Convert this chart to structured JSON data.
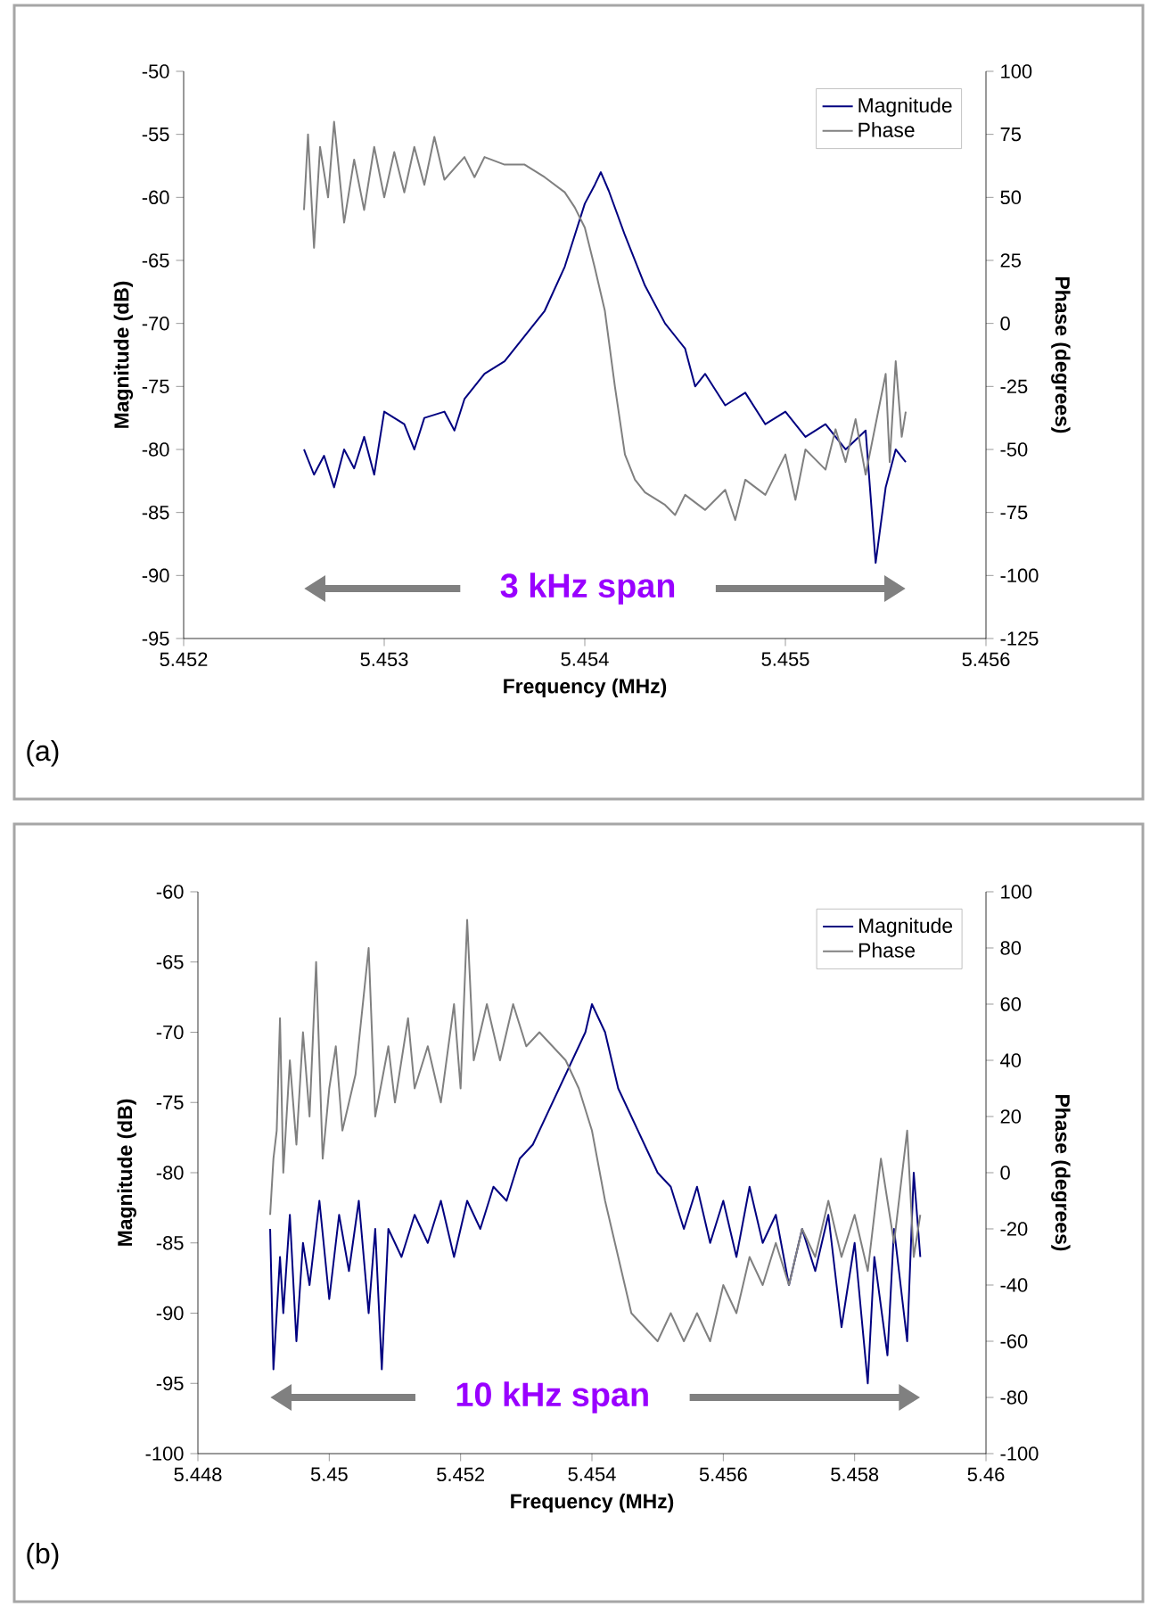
{
  "chart_data": [
    {
      "type": "line",
      "xlabel": "Frequency (MHz)",
      "ylabel": "Magnitude (dB)",
      "y2label": "Phase (degrees)",
      "xlim": [
        5.452,
        5.456
      ],
      "xticks": [
        5.452,
        5.453,
        5.454,
        5.455,
        5.456
      ],
      "ylim": [
        -95,
        -50
      ],
      "yticks": [
        -95,
        -90,
        -85,
        -80,
        -75,
        -70,
        -65,
        -60,
        -55,
        -50
      ],
      "y2lim": [
        -125,
        100
      ],
      "y2ticks": [
        -125,
        -100,
        -75,
        -50,
        -25,
        0,
        25,
        50,
        75,
        100
      ],
      "legend": "top right",
      "annotations": [
        "3 kHz span",
        "(a)"
      ],
      "series": [
        {
          "name": "Magnitude",
          "color": "#000080",
          "x": [
            5.4526,
            5.45265,
            5.4527,
            5.45275,
            5.4528,
            5.45285,
            5.4529,
            5.45295,
            5.453,
            5.4531,
            5.45315,
            5.4532,
            5.4533,
            5.45335,
            5.4534,
            5.4535,
            5.4536,
            5.4537,
            5.4538,
            5.4539,
            5.45395,
            5.454,
            5.45405,
            5.45408,
            5.45412,
            5.4542,
            5.4543,
            5.4544,
            5.4545,
            5.45455,
            5.4546,
            5.4547,
            5.4548,
            5.4549,
            5.455,
            5.4551,
            5.4552,
            5.4553,
            5.4554,
            5.45545,
            5.4555,
            5.45555,
            5.4556
          ],
          "values": [
            -80,
            -82,
            -80.5,
            -83,
            -80,
            -81.5,
            -79,
            -82,
            -77,
            -78,
            -80,
            -77.5,
            -77,
            -78.5,
            -76,
            -74,
            -73,
            -71,
            -69,
            -65.5,
            -63,
            -60.5,
            -59,
            -58,
            -59.5,
            -63,
            -67,
            -70,
            -72,
            -75,
            -74,
            -76.5,
            -75.5,
            -78,
            -77,
            -79,
            -78,
            -80,
            -78.5,
            -89,
            -83,
            -80,
            -81
          ]
        },
        {
          "name": "Phase",
          "color": "#808080",
          "axis": "y2",
          "x": [
            5.4526,
            5.45262,
            5.45265,
            5.45268,
            5.45272,
            5.45275,
            5.4528,
            5.45285,
            5.4529,
            5.45295,
            5.453,
            5.45305,
            5.4531,
            5.45315,
            5.4532,
            5.45325,
            5.4533,
            5.4534,
            5.45345,
            5.4535,
            5.4536,
            5.4537,
            5.4538,
            5.4539,
            5.45395,
            5.454,
            5.45405,
            5.4541,
            5.45415,
            5.4542,
            5.45425,
            5.4543,
            5.4544,
            5.45445,
            5.4545,
            5.4546,
            5.4547,
            5.45475,
            5.4548,
            5.4549,
            5.455,
            5.45505,
            5.4551,
            5.4552,
            5.45525,
            5.4553,
            5.45535,
            5.4554,
            5.45545,
            5.4555,
            5.45552,
            5.45555,
            5.45558,
            5.4556
          ],
          "values": [
            45,
            75,
            30,
            70,
            50,
            80,
            40,
            65,
            45,
            70,
            50,
            68,
            52,
            70,
            55,
            74,
            57,
            66,
            58,
            66,
            63,
            63,
            58,
            52,
            46,
            38,
            22,
            5,
            -25,
            -52,
            -62,
            -67,
            -72,
            -76,
            -68,
            -74,
            -66,
            -78,
            -62,
            -68,
            -52,
            -70,
            -50,
            -58,
            -42,
            -55,
            -38,
            -60,
            -40,
            -20,
            -55,
            -15,
            -45,
            -35
          ]
        }
      ]
    },
    {
      "type": "line",
      "xlabel": "Frequency (MHz)",
      "ylabel": "Magnitude (dB)",
      "y2label": "Phase (degrees)",
      "xlim": [
        5.448,
        5.46
      ],
      "xticks": [
        5.448,
        5.45,
        5.452,
        5.454,
        5.456,
        5.458,
        5.46
      ],
      "ylim": [
        -100,
        -60
      ],
      "yticks": [
        -100,
        -95,
        -90,
        -85,
        -80,
        -75,
        -70,
        -65,
        -60
      ],
      "y2lim": [
        -100,
        100
      ],
      "y2ticks": [
        -100,
        -80,
        -60,
        -40,
        -20,
        0,
        20,
        40,
        60,
        80,
        100
      ],
      "legend": "top right",
      "annotations": [
        "10 kHz span",
        "(b)"
      ],
      "series": [
        {
          "name": "Magnitude",
          "color": "#000080",
          "x": [
            5.4491,
            5.44915,
            5.44925,
            5.4493,
            5.4494,
            5.4495,
            5.4496,
            5.4497,
            5.44985,
            5.45,
            5.45015,
            5.4503,
            5.45045,
            5.4506,
            5.4507,
            5.4508,
            5.4509,
            5.4511,
            5.4513,
            5.4515,
            5.4517,
            5.4519,
            5.4521,
            5.4523,
            5.4525,
            5.4527,
            5.4529,
            5.4531,
            5.4533,
            5.4535,
            5.4537,
            5.4539,
            5.454,
            5.4541,
            5.4542,
            5.4544,
            5.4546,
            5.4548,
            5.455,
            5.4552,
            5.4554,
            5.4556,
            5.4558,
            5.456,
            5.4562,
            5.4564,
            5.4566,
            5.4568,
            5.457,
            5.4572,
            5.4574,
            5.4576,
            5.4578,
            5.458,
            5.4582,
            5.4583,
            5.4585,
            5.4586,
            5.4588,
            5.4589,
            5.459
          ],
          "values": [
            -84,
            -94,
            -86,
            -90,
            -83,
            -92,
            -85,
            -88,
            -82,
            -89,
            -83,
            -87,
            -82,
            -90,
            -84,
            -94,
            -84,
            -86,
            -83,
            -85,
            -82,
            -86,
            -82,
            -84,
            -81,
            -82,
            -79,
            -78,
            -76,
            -74,
            -72,
            -70,
            -68,
            -69,
            -70,
            -74,
            -76,
            -78,
            -80,
            -81,
            -84,
            -81,
            -85,
            -82,
            -86,
            -81,
            -85,
            -83,
            -88,
            -84,
            -87,
            -83,
            -91,
            -85,
            -95,
            -86,
            -93,
            -84,
            -92,
            -80,
            -86
          ]
        },
        {
          "name": "Phase",
          "color": "#808080",
          "axis": "y2",
          "x": [
            5.4491,
            5.44915,
            5.4492,
            5.44925,
            5.4493,
            5.4494,
            5.4495,
            5.4496,
            5.4497,
            5.4498,
            5.4499,
            5.45,
            5.4501,
            5.4502,
            5.4504,
            5.4506,
            5.4507,
            5.4509,
            5.451,
            5.4512,
            5.4513,
            5.4515,
            5.4517,
            5.4519,
            5.452,
            5.4521,
            5.4522,
            5.4524,
            5.4526,
            5.4528,
            5.453,
            5.4532,
            5.4534,
            5.4536,
            5.4538,
            5.454,
            5.4542,
            5.4544,
            5.4546,
            5.4548,
            5.455,
            5.4552,
            5.4554,
            5.4556,
            5.4558,
            5.456,
            5.4562,
            5.4564,
            5.4566,
            5.4568,
            5.457,
            5.4572,
            5.4574,
            5.4576,
            5.4578,
            5.458,
            5.4582,
            5.4584,
            5.4586,
            5.4588,
            5.4589,
            5.459
          ],
          "values": [
            -15,
            5,
            15,
            55,
            0,
            40,
            10,
            50,
            20,
            75,
            5,
            30,
            45,
            15,
            35,
            80,
            20,
            45,
            25,
            55,
            30,
            45,
            25,
            60,
            30,
            90,
            40,
            60,
            40,
            60,
            45,
            50,
            45,
            40,
            30,
            15,
            -10,
            -30,
            -50,
            -55,
            -60,
            -50,
            -60,
            -50,
            -60,
            -40,
            -50,
            -30,
            -40,
            -25,
            -40,
            -20,
            -30,
            -10,
            -30,
            -15,
            -35,
            5,
            -25,
            15,
            -30,
            -15
          ]
        }
      ]
    }
  ]
}
